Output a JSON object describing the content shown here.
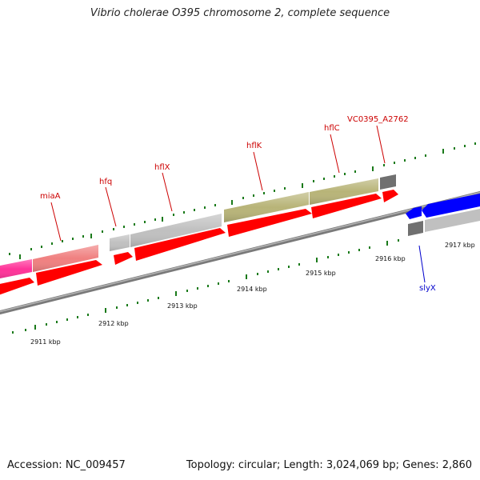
{
  "title": "Vibrio cholerae O395 chromosome 2, complete sequence",
  "footer": {
    "accession": "Accession: NC_009457",
    "summary": "Topology: circular; Length: 3,024,069 bp; Genes: 2,860"
  },
  "colors": {
    "cds": "#ff0000",
    "gene_pink": "#ff3399",
    "gene_salmon": "#f08080",
    "gene_gray": "#c0c0c0",
    "gene_olive": "#b8b478",
    "gene_dark": "#707070",
    "gene_blue": "#0000ff",
    "label": "#cc0000",
    "label_blue": "#0000cc",
    "tick": "#1a7a1a",
    "backbone": "#808080"
  },
  "kbp_labels": [
    "2911 kbp",
    "2912 kbp",
    "2913 kbp",
    "2914 kbp",
    "2915 kbp",
    "2916 kbp",
    "2917 kbp"
  ],
  "gene_labels": [
    "miaA",
    "hfq",
    "hflX",
    "hflK",
    "hflC",
    "VC0395_A2762",
    "slyX"
  ]
}
